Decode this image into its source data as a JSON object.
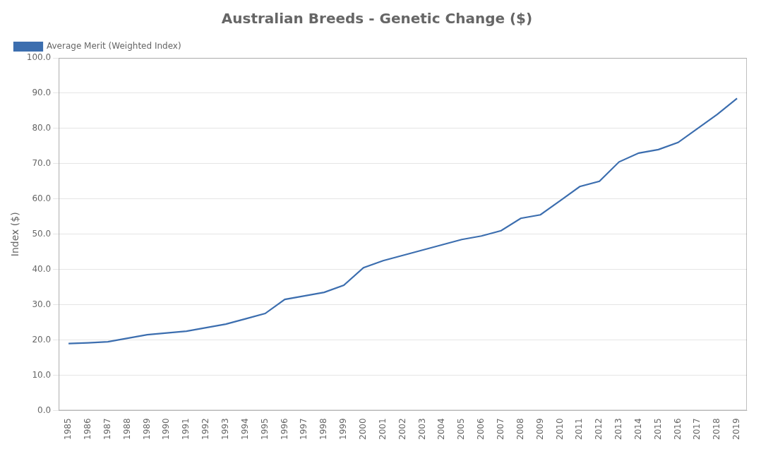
{
  "chart_data": {
    "type": "line",
    "title": "Australian Breeds - Genetic Change ($)",
    "ylabel": "Index ($)",
    "x": [
      1985,
      1986,
      1987,
      1988,
      1989,
      1990,
      1991,
      1992,
      1993,
      1994,
      1995,
      1996,
      1997,
      1998,
      1999,
      2000,
      2001,
      2002,
      2003,
      2004,
      2005,
      2006,
      2007,
      2008,
      2009,
      2010,
      2011,
      2012,
      2013,
      2014,
      2015,
      2016,
      2017,
      2018,
      2019
    ],
    "series": [
      {
        "name": "Average Merit (Weighted Index)",
        "color": "#3c6eaf",
        "values": [
          19.0,
          19.2,
          19.5,
          20.5,
          21.5,
          22.0,
          22.5,
          23.5,
          24.5,
          26.0,
          27.5,
          31.5,
          32.5,
          33.5,
          35.5,
          40.5,
          42.5,
          44.0,
          45.5,
          47.0,
          48.5,
          49.5,
          51.0,
          54.5,
          55.5,
          59.5,
          63.5,
          65.0,
          70.5,
          73.0,
          74.0,
          76.0,
          80.0,
          84.0,
          88.5
        ]
      }
    ],
    "xlim": [
      1984.5,
      2019.5
    ],
    "xticks": [
      1985,
      1986,
      1987,
      1988,
      1989,
      1990,
      1991,
      1992,
      1993,
      1994,
      1995,
      1996,
      1997,
      1998,
      1999,
      2000,
      2001,
      2002,
      2003,
      2004,
      2005,
      2006,
      2007,
      2008,
      2009,
      2010,
      2011,
      2012,
      2013,
      2014,
      2015,
      2016,
      2017,
      2018,
      2019
    ],
    "ylim": [
      0,
      100
    ],
    "yticks": [
      {
        "value": 0,
        "label": "0.0"
      },
      {
        "value": 10,
        "label": "10.0"
      },
      {
        "value": 20,
        "label": "20.0"
      },
      {
        "value": 30,
        "label": "30.0"
      },
      {
        "value": 40,
        "label": "40.0"
      },
      {
        "value": 50,
        "label": "50.0"
      },
      {
        "value": 60,
        "label": "60.0"
      },
      {
        "value": 70,
        "label": "70.0"
      },
      {
        "value": 80,
        "label": "80.0"
      },
      {
        "value": 90,
        "label": "90.0"
      },
      {
        "value": 100,
        "label": "100.0"
      }
    ],
    "grid": "y",
    "legend": "upper left"
  }
}
